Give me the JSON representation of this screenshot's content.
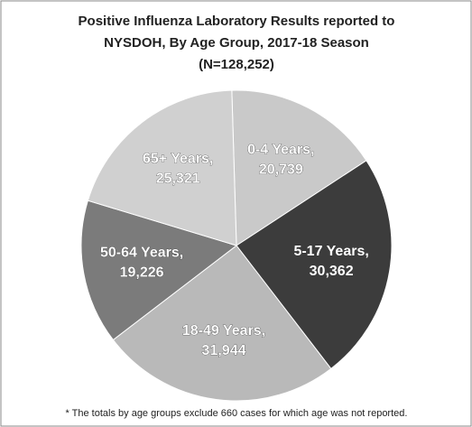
{
  "chart_data": {
    "type": "pie",
    "title": "Positive Influenza Laboratory Results reported to",
    "title_line2": "NYSDOH, By Age Group, 2017-18 Season",
    "subtitle": "(N=128,252)",
    "categories": [
      "0-4 Years,",
      "5-17 Years,",
      "18-49 Years,",
      "50-64 Years,",
      "65+ Years,"
    ],
    "values": [
      20739,
      30362,
      31944,
      19226,
      25321
    ],
    "value_labels": [
      "20,739",
      "30,362",
      "31,944",
      "19,226",
      "25,321"
    ],
    "colors": [
      "#c9c9c9",
      "#3c3c3c",
      "#b9b9b9",
      "#7b7b7b",
      "#d0d0d0"
    ],
    "footnote": "* The totals by age groups exclude 660 cases for which age was not reported."
  }
}
